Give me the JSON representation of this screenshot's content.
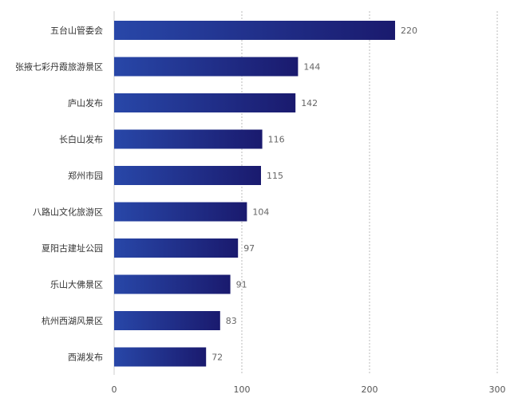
{
  "chart_data": {
    "type": "bar",
    "orientation": "horizontal",
    "categories": [
      "五台山管委会",
      "张掖七彩丹霞旅游景区",
      "庐山发布",
      "长白山发布",
      "郑州市园",
      "八路山文化旅游区",
      "夏阳古建址公园",
      "乐山大佛景区",
      "杭州西湖风景区",
      "西湖发布"
    ],
    "values": [
      220,
      144,
      142,
      116,
      115,
      104,
      97,
      91,
      83,
      72
    ],
    "xlim": [
      0,
      300
    ],
    "xticks": [
      0,
      100,
      200,
      300
    ],
    "grid": "vertical-dotted",
    "legend": "none",
    "colors": {
      "bar_start": "#2847a8",
      "bar_end": "#1a1a6e",
      "grid": "#bbbbbb",
      "axis": "#cccccc"
    }
  }
}
